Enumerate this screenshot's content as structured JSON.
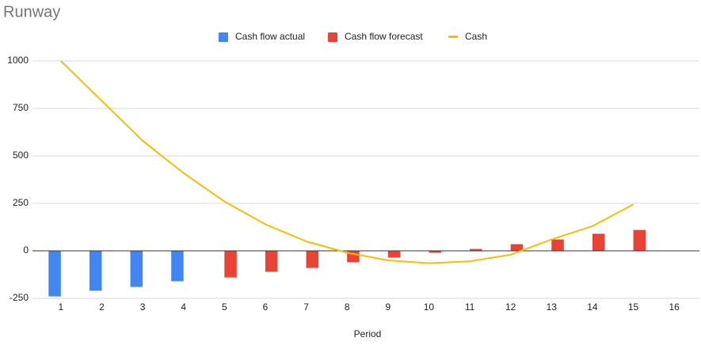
{
  "chart_data": {
    "type": "combo",
    "title": "Runway",
    "x_label": "Period",
    "categories": [
      "1",
      "2",
      "3",
      "4",
      "5",
      "6",
      "7",
      "8",
      "9",
      "10",
      "11",
      "12",
      "13",
      "14",
      "15",
      "16"
    ],
    "series": [
      {
        "name": "Cash flow actual",
        "type": "bar",
        "color": "#4285f4",
        "values": [
          -240,
          -210,
          -190,
          -160,
          null,
          null,
          null,
          null,
          null,
          null,
          null,
          null,
          null,
          null,
          null,
          null
        ]
      },
      {
        "name": "Cash flow forecast",
        "type": "bar",
        "color": "#ea4335",
        "values": [
          null,
          null,
          null,
          null,
          -140,
          -110,
          -90,
          -60,
          -35,
          -10,
          10,
          35,
          60,
          90,
          110,
          null
        ]
      },
      {
        "name": "Cash",
        "type": "line",
        "color": "#fbbc04",
        "values": [
          1000,
          790,
          580,
          410,
          260,
          140,
          50,
          -10,
          -50,
          -65,
          -55,
          -20,
          60,
          130,
          245,
          null
        ]
      }
    ],
    "ylim": [
      -250,
      1000
    ],
    "yticks": [
      -250,
      0,
      250,
      500,
      750,
      1000
    ],
    "grid": true,
    "legend": "top"
  }
}
